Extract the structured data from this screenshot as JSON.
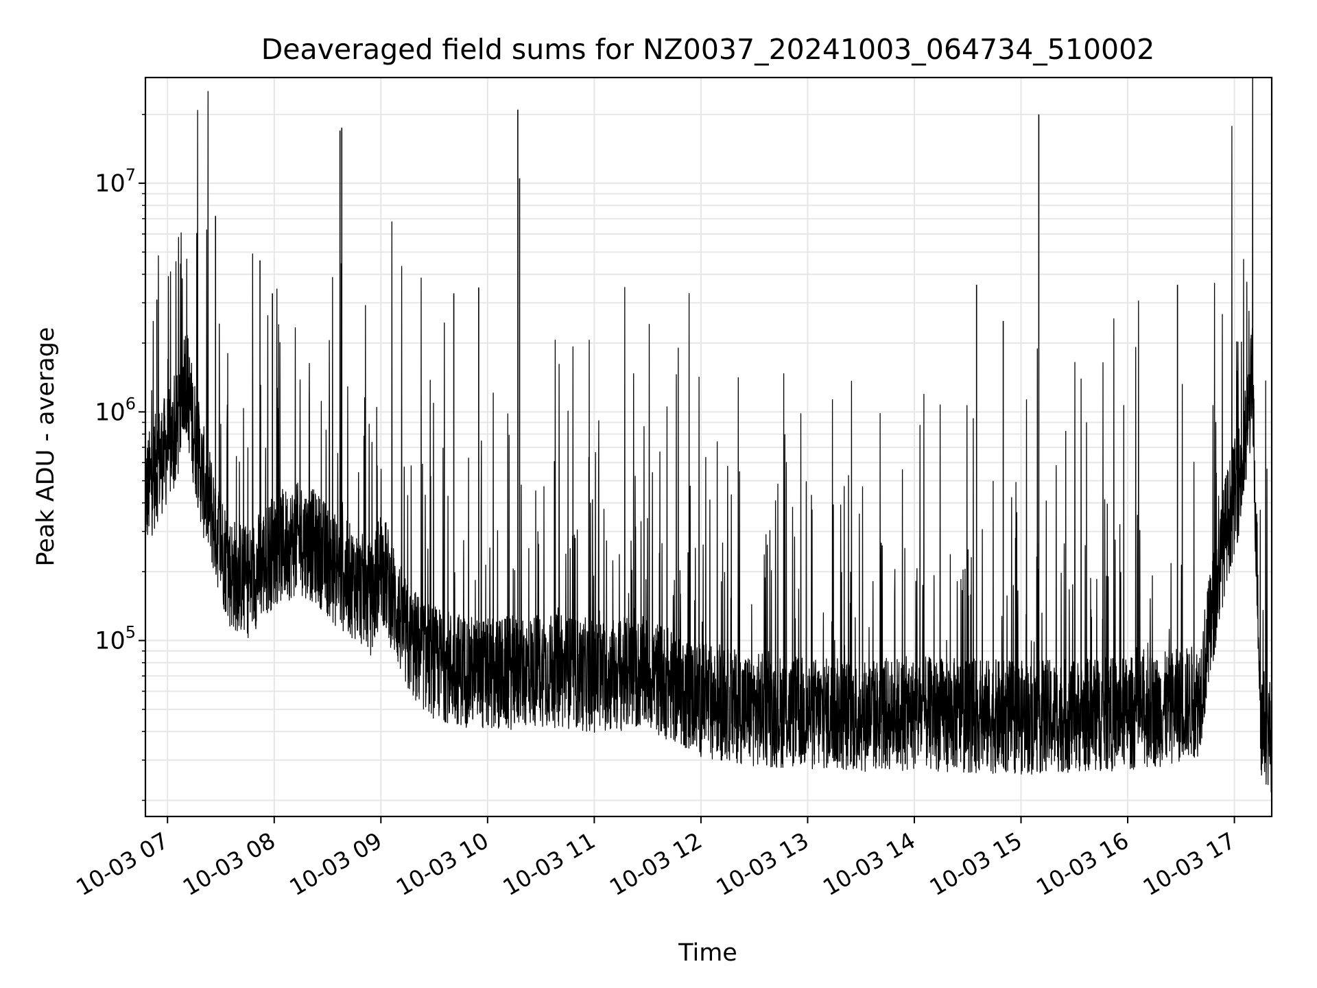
{
  "chart_data": {
    "type": "line",
    "title": "Deaveraged field sums for NZ0037_20241003_064734_510002",
    "xlabel": "Time",
    "ylabel": "Peak ADU - average",
    "yscale": "log",
    "ylim": [
      17000,
      29000000
    ],
    "xlim": [
      "2024-10-03 06:47:34",
      "2024-10-03 17:21:00"
    ],
    "x_ticks": [
      "10-03 07",
      "10-03 08",
      "10-03 09",
      "10-03 10",
      "10-03 11",
      "10-03 12",
      "10-03 13",
      "10-03 14",
      "10-03 15",
      "10-03 16",
      "10-03 17"
    ],
    "y_ticks": [
      {
        "base": "10",
        "exp": "5",
        "value": 100000
      },
      {
        "base": "10",
        "exp": "6",
        "value": 1000000
      },
      {
        "base": "10",
        "exp": "7",
        "value": 10000000
      }
    ],
    "grid": true,
    "line_color": "#000000",
    "series": [
      {
        "x": [
          "2024-10-03 06:47",
          "2024-10-03 06:55",
          "2024-10-03 07:05",
          "2024-10-03 07:10",
          "2024-10-03 07:14",
          "2024-10-03 07:20",
          "2024-10-03 07:28",
          "2024-10-03 07:35",
          "2024-10-03 07:45",
          "2024-10-03 08:00",
          "2024-10-03 08:15",
          "2024-10-03 08:25",
          "2024-10-03 08:35",
          "2024-10-03 08:45",
          "2024-10-03 08:55",
          "2024-10-03 09:00",
          "2024-10-03 09:15",
          "2024-10-03 09:30",
          "2024-10-03 09:45",
          "2024-10-03 10:00",
          "2024-10-03 10:30",
          "2024-10-03 11:00",
          "2024-10-03 11:30",
          "2024-10-03 12:00",
          "2024-10-03 12:30",
          "2024-10-03 13:00",
          "2024-10-03 13:30",
          "2024-10-03 14:00",
          "2024-10-03 14:30",
          "2024-10-03 15:00",
          "2024-10-03 15:30",
          "2024-10-03 16:00",
          "2024-10-03 16:20",
          "2024-10-03 16:40",
          "2024-10-03 16:55",
          "2024-10-03 17:05",
          "2024-10-03 17:10",
          "2024-10-03 17:15",
          "2024-10-03 17:21"
        ],
        "y": [
          420000,
          600000,
          800000,
          1500000,
          900000,
          500000,
          300000,
          200000,
          180000,
          250000,
          280000,
          250000,
          200000,
          180000,
          150000,
          220000,
          100000,
          80000,
          75000,
          70000,
          75000,
          70000,
          72000,
          55000,
          50000,
          48000,
          47000,
          48000,
          47000,
          46000,
          47000,
          48000,
          50000,
          55000,
          300000,
          600000,
          1400000,
          45000,
          38000
        ],
        "spikes": [
          {
            "x": "2024-10-03 06:54",
            "y": 3100000
          },
          {
            "x": "2024-10-03 07:27",
            "y": 7200000
          },
          {
            "x": "2024-10-03 07:52",
            "y": 4600000
          },
          {
            "x": "2024-10-03 07:59",
            "y": 3300000
          },
          {
            "x": "2024-10-03 08:37",
            "y": 17000000
          },
          {
            "x": "2024-10-03 08:38",
            "y": 17500000
          },
          {
            "x": "2024-10-03 09:41",
            "y": 3300000
          },
          {
            "x": "2024-10-03 09:55",
            "y": 3500000
          },
          {
            "x": "2024-10-03 10:17",
            "y": 21000000
          },
          {
            "x": "2024-10-03 10:18",
            "y": 10500000
          },
          {
            "x": "2024-10-03 14:35",
            "y": 3600000
          },
          {
            "x": "2024-10-03 14:50",
            "y": 2500000
          },
          {
            "x": "2024-10-03 15:10",
            "y": 20000000
          },
          {
            "x": "2024-10-03 16:28",
            "y": 3600000
          }
        ]
      }
    ]
  }
}
